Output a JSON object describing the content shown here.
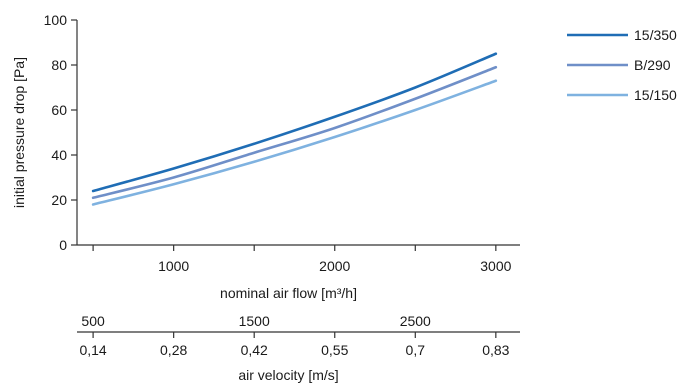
{
  "chart_data": {
    "type": "line",
    "xlabel": "nominal air flow [m³/h]",
    "ylabel": "initial pressure drop [Pa]",
    "xlim": [
      400,
      3150
    ],
    "ylim": [
      0,
      100
    ],
    "x_ticks": [
      "1000",
      "2000",
      "3000"
    ],
    "y_ticks": [
      "0",
      "20",
      "40",
      "60",
      "80",
      "100"
    ],
    "x": [
      500,
      1000,
      1500,
      2000,
      2500,
      3000
    ],
    "series": [
      {
        "name": "15/350",
        "color": "#1f6db5",
        "values": [
          24,
          34,
          45,
          57,
          70,
          85
        ]
      },
      {
        "name": "B/290",
        "color": "#6f8fc8",
        "values": [
          21,
          30,
          41,
          52,
          65,
          79
        ]
      },
      {
        "name": "15/150",
        "color": "#7fb2e0",
        "values": [
          18,
          27,
          37,
          48,
          60,
          73
        ]
      }
    ],
    "legend_position": "top-right",
    "secondary_axis_1": {
      "labels": [
        "500",
        "1500",
        "2500"
      ],
      "positions": [
        500,
        1500,
        2500
      ]
    },
    "secondary_axis_2": {
      "label": "air velocity [m/s]",
      "labels": [
        "0,14",
        "0,28",
        "0,42",
        "0,55",
        "0,7",
        "0,83"
      ],
      "positions": [
        500,
        1000,
        1500,
        2000,
        2500,
        3000
      ]
    }
  }
}
